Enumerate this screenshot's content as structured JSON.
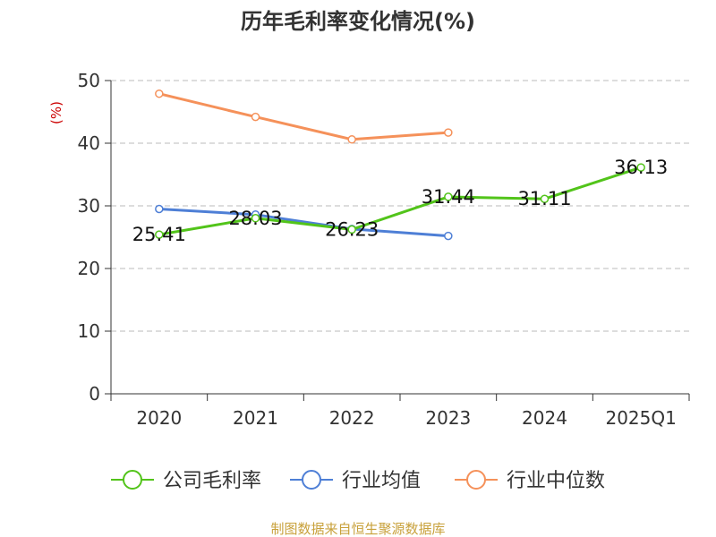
{
  "chart_data": {
    "type": "line",
    "title": "历年毛利率变化情况(%)",
    "ylabel": "(%)",
    "xlabel": "",
    "categories": [
      "2020",
      "2021",
      "2022",
      "2023",
      "2024",
      "2025Q1"
    ],
    "ylim": [
      0,
      50
    ],
    "yticks": [
      0,
      10,
      20,
      30,
      40,
      50
    ],
    "grid": true,
    "legend_position": "bottom",
    "series": [
      {
        "name": "公司毛利率",
        "color": "#52c41a",
        "values": [
          25.41,
          28.03,
          26.23,
          31.44,
          31.11,
          36.13
        ],
        "labels": [
          "25.41",
          "28.03",
          "26.23",
          "31.44",
          "31.11",
          "36.13"
        ]
      },
      {
        "name": "行业均值",
        "color": "#4e7fd6",
        "values": [
          29.5,
          28.6,
          26.3,
          25.2,
          null,
          null
        ],
        "labels": []
      },
      {
        "name": "行业中位数",
        "color": "#f5915a",
        "values": [
          47.9,
          44.2,
          40.6,
          41.7,
          null,
          null
        ],
        "labels": []
      }
    ]
  },
  "source_note": "制图数据来自恒生聚源数据库"
}
